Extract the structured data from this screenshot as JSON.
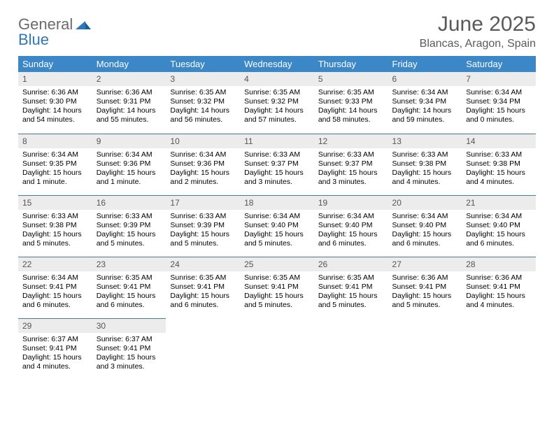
{
  "brand": {
    "word1": "General",
    "word2": "Blue"
  },
  "title": "June 2025",
  "location": "Blancas, Aragon, Spain",
  "colors": {
    "header_bg": "#3b87c8",
    "header_text": "#ffffff",
    "daynum_bg": "#ececec",
    "daynum_text": "#555555",
    "rule": "#4a79a5",
    "title_text": "#5a5a5a",
    "logo_gray": "#6b6b6b",
    "logo_blue": "#2f77bc"
  },
  "weekdays": [
    "Sunday",
    "Monday",
    "Tuesday",
    "Wednesday",
    "Thursday",
    "Friday",
    "Saturday"
  ],
  "weeks": [
    [
      {
        "n": "1",
        "sunrise": "Sunrise: 6:36 AM",
        "sunset": "Sunset: 9:30 PM",
        "day1": "Daylight: 14 hours",
        "day2": "and 54 minutes."
      },
      {
        "n": "2",
        "sunrise": "Sunrise: 6:36 AM",
        "sunset": "Sunset: 9:31 PM",
        "day1": "Daylight: 14 hours",
        "day2": "and 55 minutes."
      },
      {
        "n": "3",
        "sunrise": "Sunrise: 6:35 AM",
        "sunset": "Sunset: 9:32 PM",
        "day1": "Daylight: 14 hours",
        "day2": "and 56 minutes."
      },
      {
        "n": "4",
        "sunrise": "Sunrise: 6:35 AM",
        "sunset": "Sunset: 9:32 PM",
        "day1": "Daylight: 14 hours",
        "day2": "and 57 minutes."
      },
      {
        "n": "5",
        "sunrise": "Sunrise: 6:35 AM",
        "sunset": "Sunset: 9:33 PM",
        "day1": "Daylight: 14 hours",
        "day2": "and 58 minutes."
      },
      {
        "n": "6",
        "sunrise": "Sunrise: 6:34 AM",
        "sunset": "Sunset: 9:34 PM",
        "day1": "Daylight: 14 hours",
        "day2": "and 59 minutes."
      },
      {
        "n": "7",
        "sunrise": "Sunrise: 6:34 AM",
        "sunset": "Sunset: 9:34 PM",
        "day1": "Daylight: 15 hours",
        "day2": "and 0 minutes."
      }
    ],
    [
      {
        "n": "8",
        "sunrise": "Sunrise: 6:34 AM",
        "sunset": "Sunset: 9:35 PM",
        "day1": "Daylight: 15 hours",
        "day2": "and 1 minute."
      },
      {
        "n": "9",
        "sunrise": "Sunrise: 6:34 AM",
        "sunset": "Sunset: 9:36 PM",
        "day1": "Daylight: 15 hours",
        "day2": "and 1 minute."
      },
      {
        "n": "10",
        "sunrise": "Sunrise: 6:34 AM",
        "sunset": "Sunset: 9:36 PM",
        "day1": "Daylight: 15 hours",
        "day2": "and 2 minutes."
      },
      {
        "n": "11",
        "sunrise": "Sunrise: 6:33 AM",
        "sunset": "Sunset: 9:37 PM",
        "day1": "Daylight: 15 hours",
        "day2": "and 3 minutes."
      },
      {
        "n": "12",
        "sunrise": "Sunrise: 6:33 AM",
        "sunset": "Sunset: 9:37 PM",
        "day1": "Daylight: 15 hours",
        "day2": "and 3 minutes."
      },
      {
        "n": "13",
        "sunrise": "Sunrise: 6:33 AM",
        "sunset": "Sunset: 9:38 PM",
        "day1": "Daylight: 15 hours",
        "day2": "and 4 minutes."
      },
      {
        "n": "14",
        "sunrise": "Sunrise: 6:33 AM",
        "sunset": "Sunset: 9:38 PM",
        "day1": "Daylight: 15 hours",
        "day2": "and 4 minutes."
      }
    ],
    [
      {
        "n": "15",
        "sunrise": "Sunrise: 6:33 AM",
        "sunset": "Sunset: 9:38 PM",
        "day1": "Daylight: 15 hours",
        "day2": "and 5 minutes."
      },
      {
        "n": "16",
        "sunrise": "Sunrise: 6:33 AM",
        "sunset": "Sunset: 9:39 PM",
        "day1": "Daylight: 15 hours",
        "day2": "and 5 minutes."
      },
      {
        "n": "17",
        "sunrise": "Sunrise: 6:33 AM",
        "sunset": "Sunset: 9:39 PM",
        "day1": "Daylight: 15 hours",
        "day2": "and 5 minutes."
      },
      {
        "n": "18",
        "sunrise": "Sunrise: 6:34 AM",
        "sunset": "Sunset: 9:40 PM",
        "day1": "Daylight: 15 hours",
        "day2": "and 5 minutes."
      },
      {
        "n": "19",
        "sunrise": "Sunrise: 6:34 AM",
        "sunset": "Sunset: 9:40 PM",
        "day1": "Daylight: 15 hours",
        "day2": "and 6 minutes."
      },
      {
        "n": "20",
        "sunrise": "Sunrise: 6:34 AM",
        "sunset": "Sunset: 9:40 PM",
        "day1": "Daylight: 15 hours",
        "day2": "and 6 minutes."
      },
      {
        "n": "21",
        "sunrise": "Sunrise: 6:34 AM",
        "sunset": "Sunset: 9:40 PM",
        "day1": "Daylight: 15 hours",
        "day2": "and 6 minutes."
      }
    ],
    [
      {
        "n": "22",
        "sunrise": "Sunrise: 6:34 AM",
        "sunset": "Sunset: 9:41 PM",
        "day1": "Daylight: 15 hours",
        "day2": "and 6 minutes."
      },
      {
        "n": "23",
        "sunrise": "Sunrise: 6:35 AM",
        "sunset": "Sunset: 9:41 PM",
        "day1": "Daylight: 15 hours",
        "day2": "and 6 minutes."
      },
      {
        "n": "24",
        "sunrise": "Sunrise: 6:35 AM",
        "sunset": "Sunset: 9:41 PM",
        "day1": "Daylight: 15 hours",
        "day2": "and 6 minutes."
      },
      {
        "n": "25",
        "sunrise": "Sunrise: 6:35 AM",
        "sunset": "Sunset: 9:41 PM",
        "day1": "Daylight: 15 hours",
        "day2": "and 5 minutes."
      },
      {
        "n": "26",
        "sunrise": "Sunrise: 6:35 AM",
        "sunset": "Sunset: 9:41 PM",
        "day1": "Daylight: 15 hours",
        "day2": "and 5 minutes."
      },
      {
        "n": "27",
        "sunrise": "Sunrise: 6:36 AM",
        "sunset": "Sunset: 9:41 PM",
        "day1": "Daylight: 15 hours",
        "day2": "and 5 minutes."
      },
      {
        "n": "28",
        "sunrise": "Sunrise: 6:36 AM",
        "sunset": "Sunset: 9:41 PM",
        "day1": "Daylight: 15 hours",
        "day2": "and 4 minutes."
      }
    ],
    [
      {
        "n": "29",
        "sunrise": "Sunrise: 6:37 AM",
        "sunset": "Sunset: 9:41 PM",
        "day1": "Daylight: 15 hours",
        "day2": "and 4 minutes."
      },
      {
        "n": "30",
        "sunrise": "Sunrise: 6:37 AM",
        "sunset": "Sunset: 9:41 PM",
        "day1": "Daylight: 15 hours",
        "day2": "and 3 minutes."
      },
      null,
      null,
      null,
      null,
      null
    ]
  ]
}
